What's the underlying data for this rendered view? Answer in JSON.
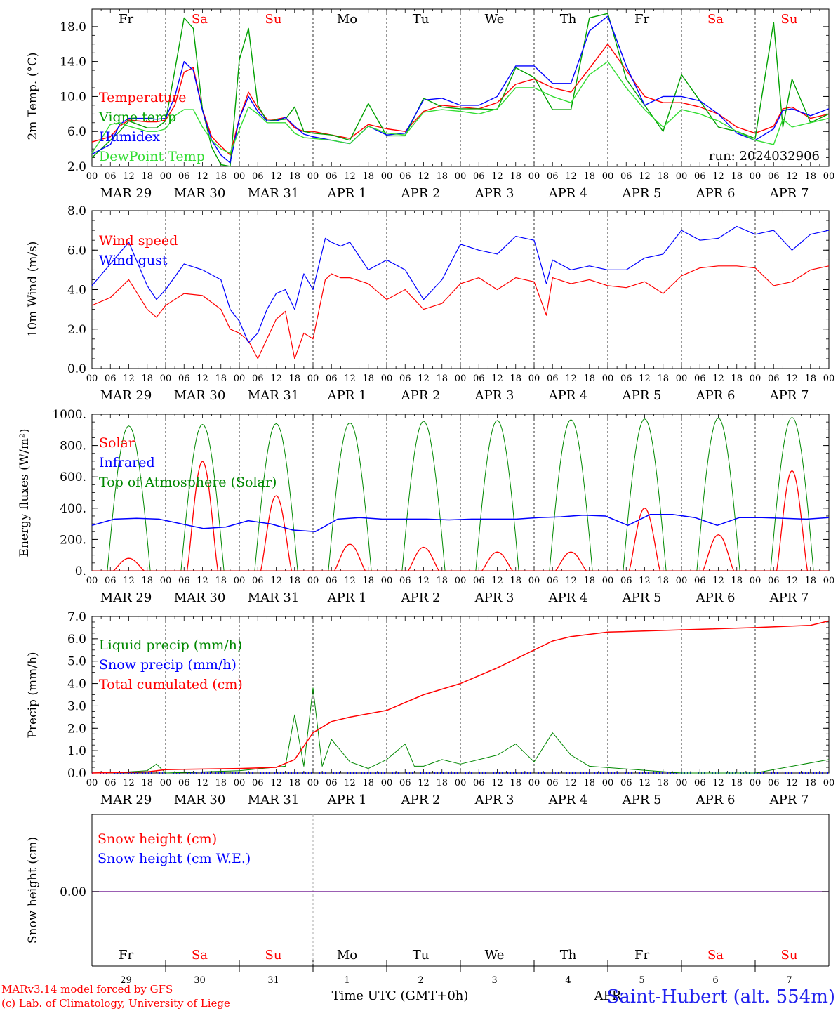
{
  "chart_data": [
    {
      "type": "line",
      "ylabel": "2m Temp. (°C)",
      "ylim": [
        2,
        20
      ],
      "yticks": [
        2,
        6,
        10,
        14,
        18
      ],
      "yticklabels": [
        "2.0",
        "6.0",
        "10.0",
        "14.0",
        "18.0"
      ],
      "annotation": "run: 2024032906",
      "x_hours": [
        0,
        6,
        9,
        12,
        18,
        21,
        24,
        27,
        30,
        33,
        36,
        39,
        42,
        45,
        48,
        51,
        54,
        57,
        60,
        63,
        66,
        69,
        72,
        78,
        84,
        90,
        96,
        102,
        108,
        114,
        120,
        126,
        132,
        138,
        144,
        150,
        156,
        162,
        168,
        174,
        180,
        186,
        192,
        198,
        204,
        210,
        216,
        222,
        225,
        228,
        234,
        240
      ],
      "series": [
        {
          "name": "Temperature",
          "color": "#ff0000",
          "values": [
            4.8,
            5.4,
            6.6,
            7.3,
            7.1,
            7.1,
            7.3,
            9.0,
            12.8,
            13.3,
            8.5,
            5.4,
            4.3,
            3.3,
            7.5,
            10.5,
            8.7,
            7.4,
            7.4,
            7.6,
            6.4,
            6.0,
            6.0,
            5.6,
            5.2,
            6.8,
            6.3,
            6.0,
            8.3,
            9.0,
            8.8,
            8.6,
            9.3,
            11.4,
            12.0,
            11.0,
            10.5,
            13.2,
            16.0,
            13.0,
            10.0,
            9.3,
            9.3,
            8.8,
            8.0,
            6.5,
            5.8,
            6.6,
            8.6,
            8.8,
            7.5,
            8.0
          ]
        },
        {
          "name": "Vigne temp",
          "color": "#00a000",
          "values": [
            3.0,
            5.0,
            6.0,
            7.2,
            6.4,
            6.4,
            7.2,
            13.0,
            19.0,
            17.8,
            8.5,
            4.2,
            2.2,
            1.6,
            14.2,
            17.8,
            9.0,
            7.2,
            7.3,
            7.4,
            8.8,
            6.0,
            5.8,
            5.6,
            5.0,
            9.2,
            5.5,
            5.5,
            9.8,
            8.8,
            8.6,
            8.6,
            8.5,
            13.3,
            12.2,
            8.5,
            8.5,
            19.0,
            19.5,
            12.0,
            9.0,
            6.0,
            12.5,
            9.5,
            6.5,
            6.0,
            5.2,
            18.5,
            6.5,
            12.0,
            7.0,
            8.0
          ]
        },
        {
          "name": "Humidex",
          "color": "#0000ff",
          "values": [
            3.4,
            4.5,
            6.8,
            7.5,
            7.5,
            7.4,
            7.5,
            10.0,
            14.0,
            13.0,
            8.4,
            5.0,
            3.3,
            2.4,
            7.5,
            10.0,
            8.3,
            7.2,
            7.2,
            7.6,
            6.6,
            5.7,
            5.4,
            5.0,
            4.6,
            6.6,
            5.6,
            5.8,
            9.6,
            9.8,
            9.0,
            9.0,
            10.0,
            13.5,
            13.5,
            11.5,
            11.5,
            17.5,
            19.2,
            13.5,
            9.0,
            10.0,
            10.0,
            9.5,
            8.0,
            5.8,
            5.0,
            6.3,
            8.4,
            8.6,
            7.8,
            8.6
          ]
        },
        {
          "name": "DewPoint Temp",
          "color": "#33dd33",
          "values": [
            3.5,
            6.8,
            7.0,
            6.6,
            6.0,
            6.0,
            6.3,
            7.8,
            8.5,
            8.5,
            6.5,
            5.0,
            4.0,
            3.5,
            6.2,
            8.8,
            8.0,
            7.0,
            7.0,
            7.0,
            5.8,
            5.3,
            5.2,
            5.0,
            4.6,
            6.6,
            5.8,
            5.6,
            8.2,
            8.5,
            8.3,
            8.0,
            8.6,
            11.0,
            11.0,
            10.0,
            9.3,
            12.5,
            14.0,
            11.0,
            8.5,
            6.5,
            8.5,
            8.0,
            7.2,
            6.0,
            5.0,
            4.5,
            7.4,
            6.5,
            7.0,
            7.5
          ]
        }
      ]
    },
    {
      "type": "line",
      "ylabel": "10m Wind (m/s)",
      "ylim": [
        0,
        8
      ],
      "yticks": [
        0,
        2,
        4,
        6,
        8
      ],
      "yticklabels": [
        "0.0",
        "2.0",
        "4.0",
        "6.0",
        "8.0"
      ],
      "reference_line": 5,
      "x_hours": [
        0,
        6,
        12,
        18,
        21,
        24,
        30,
        36,
        42,
        45,
        48,
        51,
        54,
        57,
        60,
        63,
        66,
        69,
        72,
        76,
        78,
        81,
        84,
        90,
        96,
        102,
        108,
        114,
        120,
        126,
        132,
        138,
        144,
        148,
        150,
        156,
        162,
        168,
        174,
        180,
        186,
        192,
        198,
        204,
        210,
        216,
        222,
        228,
        234,
        240
      ],
      "series": [
        {
          "name": "Wind speed",
          "color": "#ff0000",
          "values": [
            3.2,
            3.6,
            4.5,
            3.0,
            2.6,
            3.2,
            3.8,
            3.7,
            3.0,
            2.0,
            1.8,
            1.4,
            0.5,
            1.5,
            2.5,
            2.9,
            0.5,
            1.8,
            1.5,
            4.5,
            4.8,
            4.6,
            4.6,
            4.3,
            3.5,
            4.0,
            3.0,
            3.3,
            4.3,
            4.6,
            4.0,
            4.6,
            4.4,
            2.7,
            4.6,
            4.3,
            4.5,
            4.2,
            4.1,
            4.4,
            3.8,
            4.7,
            5.1,
            5.2,
            5.2,
            5.1,
            4.2,
            4.4,
            5.0,
            5.2
          ]
        },
        {
          "name": "Wind gust",
          "color": "#0000ff",
          "values": [
            4.2,
            5.3,
            6.4,
            4.2,
            3.5,
            4.0,
            5.3,
            5.0,
            4.5,
            3.0,
            2.4,
            1.3,
            1.8,
            3.0,
            3.8,
            4.0,
            3.0,
            4.8,
            4.0,
            6.6,
            6.4,
            6.2,
            6.4,
            5.0,
            5.5,
            5.0,
            3.5,
            4.5,
            6.3,
            6.0,
            5.8,
            6.7,
            6.5,
            4.3,
            5.5,
            5.0,
            5.2,
            5.0,
            5.0,
            5.6,
            5.8,
            7.0,
            6.5,
            6.6,
            7.2,
            6.8,
            7.0,
            6.0,
            6.8,
            7.0
          ]
        }
      ]
    },
    {
      "type": "line",
      "ylabel": "Energy fluxes (W/m²)",
      "ylim": [
        0,
        1000
      ],
      "yticks": [
        0,
        200,
        400,
        600,
        800,
        1000
      ],
      "yticklabels": [
        "0.",
        "200.",
        "400.",
        "600.",
        "800.",
        "1000."
      ],
      "series": [
        {
          "name": "Solar",
          "color": "#ff0000",
          "day_peaks": [
            80,
            700,
            480,
            170,
            150,
            120,
            120,
            400,
            230,
            640
          ]
        },
        {
          "name": "Infrared",
          "color": "#0000ff",
          "values": [
            290,
            330,
            335,
            330,
            300,
            270,
            280,
            320,
            300,
            260,
            250,
            330,
            340,
            330,
            330,
            330,
            325,
            330,
            330,
            330,
            340,
            345,
            355,
            350,
            290,
            360,
            360,
            340,
            290,
            340,
            340,
            335,
            330,
            340
          ]
        },
        {
          "name": "Top of Atmosphere (Solar)",
          "color": "#008800",
          "day_peaks": [
            925,
            935,
            940,
            945,
            955,
            960,
            965,
            970,
            975,
            980
          ]
        }
      ]
    },
    {
      "type": "line",
      "ylabel": "Precip (mm/h)",
      "ylim": [
        0,
        7
      ],
      "yticks": [
        0,
        1,
        2,
        3,
        4,
        5,
        6,
        7
      ],
      "yticklabels": [
        "0.0",
        "1.0",
        "2.0",
        "3.0",
        "4.0",
        "5.0",
        "6.0",
        "7.0"
      ],
      "series": [
        {
          "name": "Liquid precip (mm/h)",
          "color": "#008800",
          "x_hours": [
            0,
            12,
            18,
            21,
            24,
            48,
            63,
            66,
            69,
            72,
            75,
            78,
            84,
            90,
            96,
            102,
            105,
            108,
            114,
            120,
            132,
            138,
            144,
            150,
            156,
            162,
            192,
            216,
            240
          ],
          "values": [
            0,
            0.05,
            0.1,
            0.4,
            0,
            0.1,
            0.3,
            2.6,
            0.3,
            3.8,
            0.3,
            1.5,
            0.5,
            0.2,
            0.6,
            1.3,
            0.3,
            0.3,
            0.6,
            0.4,
            0.8,
            1.3,
            0.5,
            1.8,
            0.8,
            0.3,
            0,
            0,
            0.6
          ]
        },
        {
          "name": "Snow precip (mm/h)",
          "color": "#0000ff",
          "x_hours": [
            0,
            240
          ],
          "values": [
            0,
            0
          ]
        },
        {
          "name": "Total cumulated (cm)",
          "color": "#ff0000",
          "x_hours": [
            0,
            18,
            24,
            48,
            60,
            66,
            72,
            78,
            84,
            96,
            108,
            120,
            132,
            144,
            150,
            156,
            168,
            192,
            216,
            234,
            240
          ],
          "values": [
            0,
            0.05,
            0.15,
            0.2,
            0.25,
            0.6,
            1.8,
            2.3,
            2.5,
            2.8,
            3.5,
            4.0,
            4.7,
            5.5,
            5.9,
            6.1,
            6.3,
            6.4,
            6.5,
            6.6,
            6.8
          ]
        }
      ]
    },
    {
      "type": "line",
      "ylabel": "Snow height (cm)",
      "yticks": [
        0
      ],
      "yticklabels": [
        "0.00"
      ],
      "series": [
        {
          "name": "Snow height (cm)",
          "color": "#ff0000",
          "values": [
            0,
            0
          ]
        },
        {
          "name": "Snow height (cm W.E.)",
          "color": "#0000ff",
          "values": [
            0,
            0
          ]
        }
      ]
    }
  ],
  "axis": {
    "hour_ticks": [
      "00",
      "06",
      "12",
      "18"
    ],
    "final_hour_tick": "00",
    "date_labels": [
      "MAR 29",
      "MAR 30",
      "MAR 31",
      "APR  1",
      "APR  2",
      "APR  3",
      "APR  4",
      "APR  5",
      "APR  6",
      "APR  7"
    ],
    "weekdays": [
      "Fr",
      "Sa",
      "Su",
      "Mo",
      "Tu",
      "We",
      "Th",
      "Fr",
      "Sa",
      "Su"
    ],
    "weekday_colors": [
      "#000000",
      "#ff0000",
      "#ff0000",
      "#000000",
      "#000000",
      "#000000",
      "#000000",
      "#000000",
      "#ff0000",
      "#ff0000"
    ],
    "day_numbers": [
      "29",
      "30",
      "31",
      "1",
      "2",
      "3",
      "4",
      "5",
      "6",
      "7"
    ],
    "month_label": "APR"
  },
  "footer": {
    "xlabel": "Time UTC (GMT+0h)",
    "credit_line1": "MARv3.14 model forced by GFS",
    "credit_line2": "(c) Lab. of Climatology, University of Liege",
    "station": "Saint-Hubert (alt. 554m)"
  }
}
